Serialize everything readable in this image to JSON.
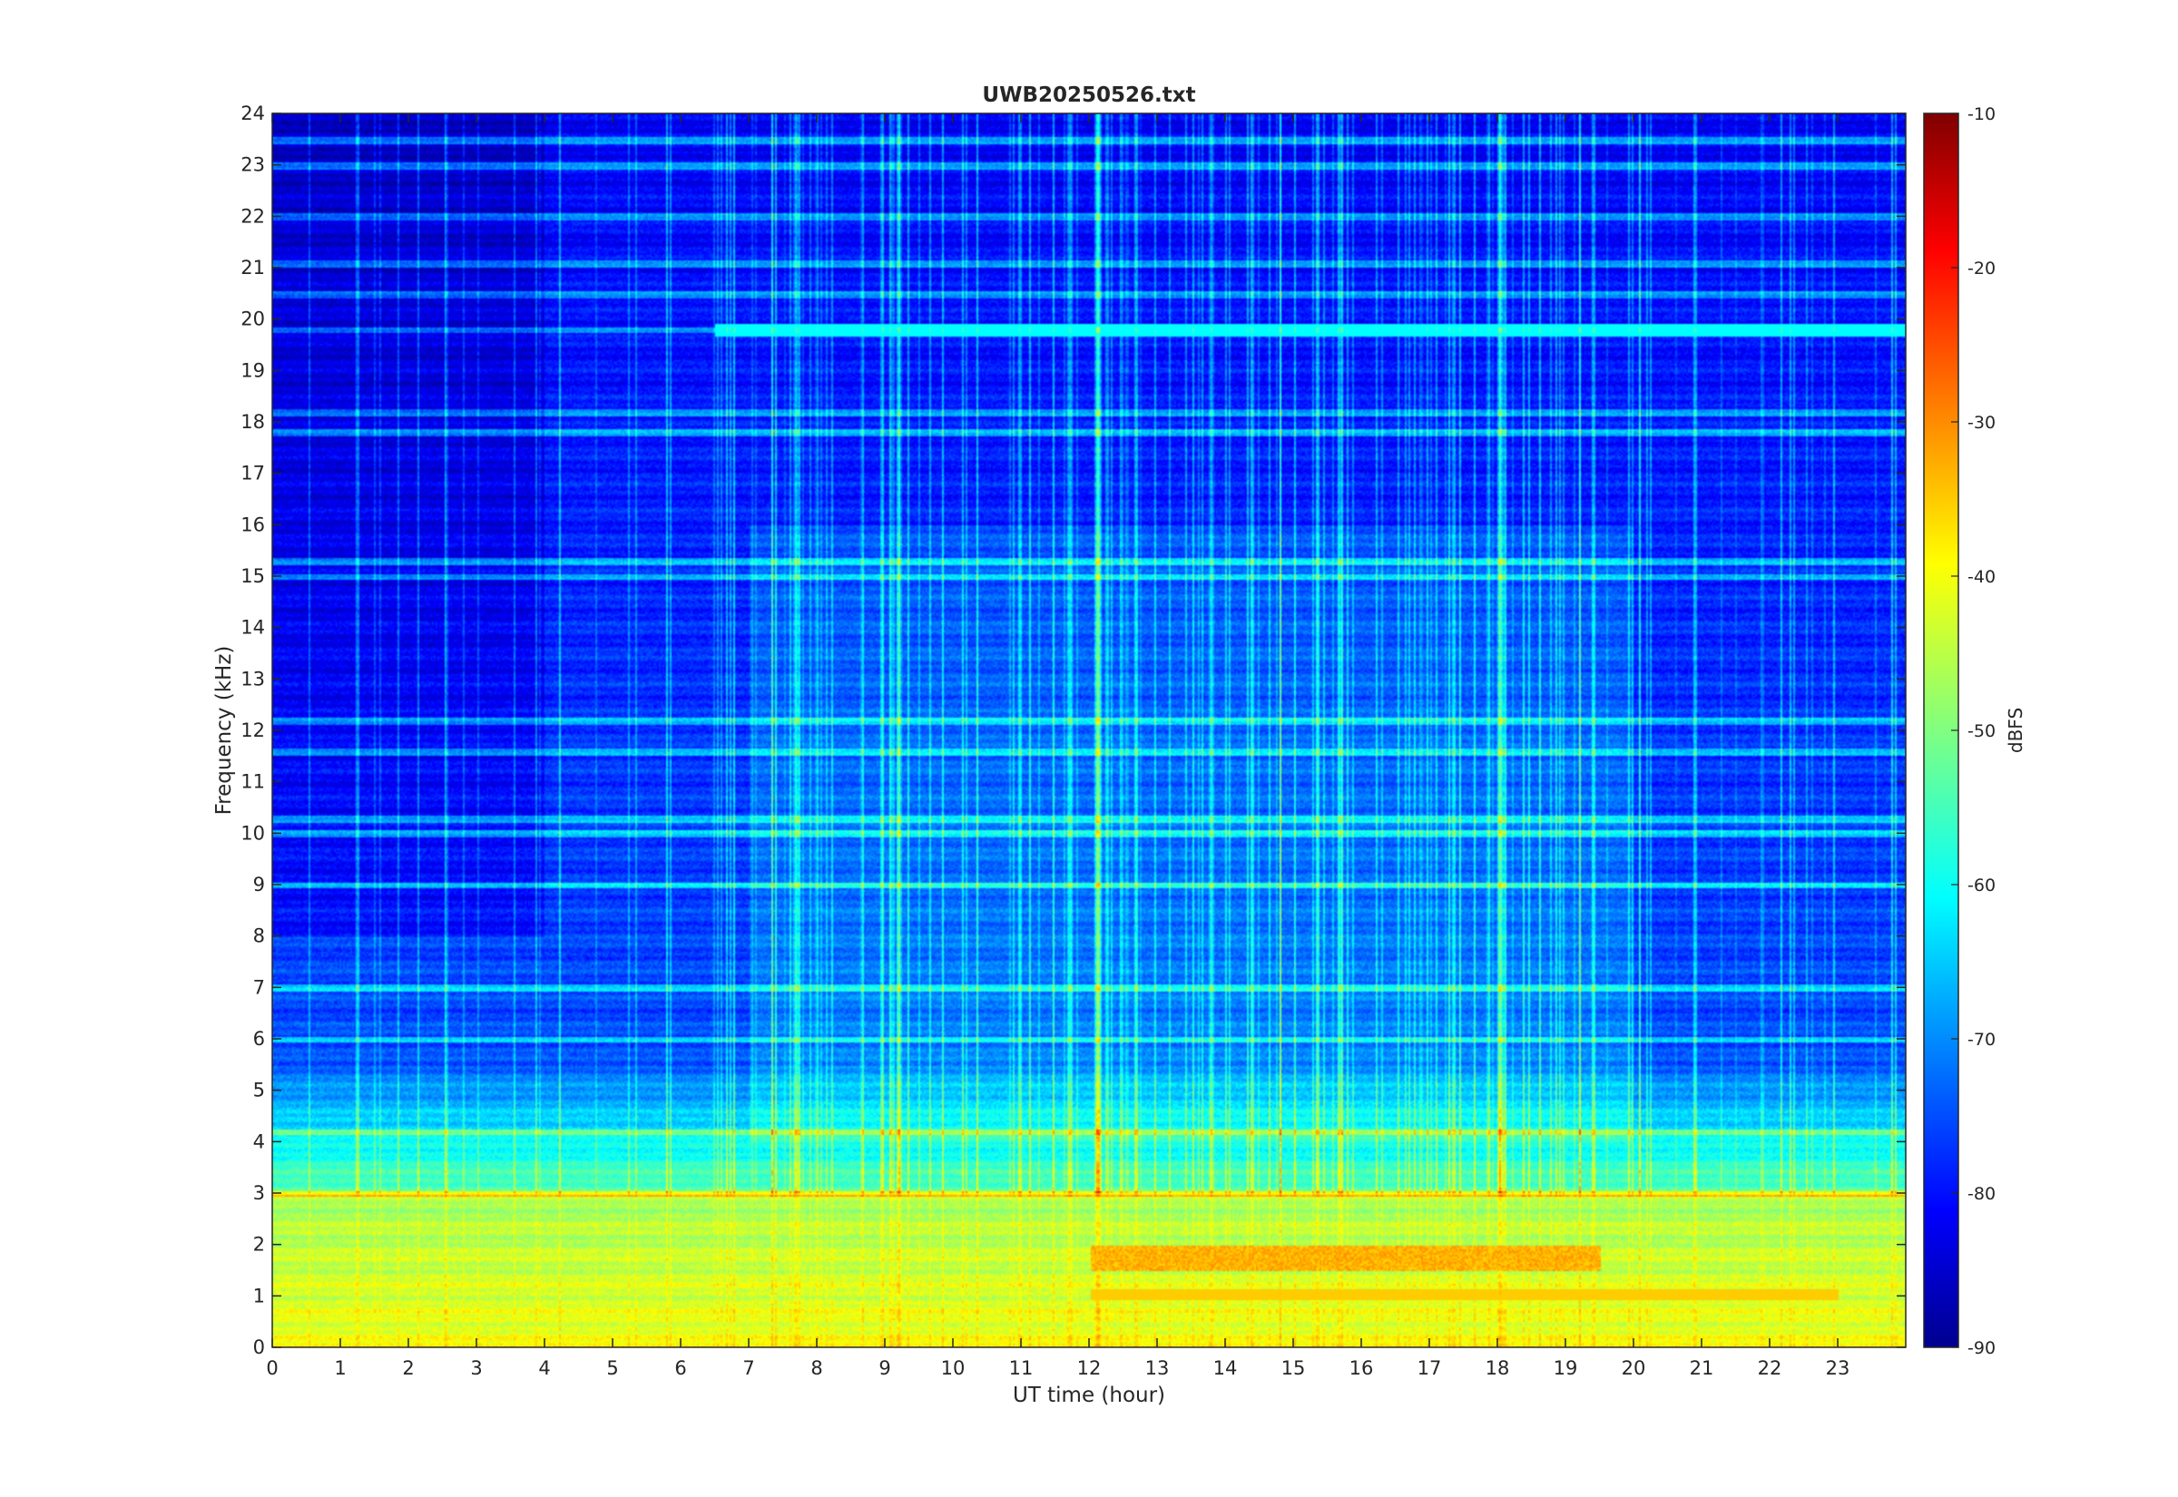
{
  "chart_data": {
    "type": "heatmap",
    "title": "UWB20250526.txt",
    "xlabel": "UT time (hour)",
    "ylabel": "Frequency (kHz)",
    "xlim": [
      0,
      24
    ],
    "ylim": [
      0,
      24
    ],
    "x_ticks": [
      0,
      1,
      2,
      3,
      4,
      5,
      6,
      7,
      8,
      9,
      10,
      11,
      12,
      13,
      14,
      15,
      16,
      17,
      18,
      19,
      20,
      21,
      22,
      23
    ],
    "y_ticks": [
      0,
      1,
      2,
      3,
      4,
      5,
      6,
      7,
      8,
      9,
      10,
      11,
      12,
      13,
      14,
      15,
      16,
      17,
      18,
      19,
      20,
      21,
      22,
      23,
      24
    ],
    "colormap": "jet",
    "colorbar": {
      "label": "dBFS",
      "range": [
        -90,
        -10
      ],
      "ticks": [
        -90,
        -80,
        -70,
        -60,
        -50,
        -40,
        -30,
        -20,
        -10
      ]
    },
    "features": {
      "low_band_dbfs": -42,
      "strong_band": {
        "x": [
          12,
          19.5
        ],
        "y": [
          1.5,
          2.0
        ],
        "dbfs": -32
      },
      "horizontal_lines_khz": [
        23.5,
        23.0,
        22.0,
        21.1,
        20.5,
        19.8,
        18.2,
        17.8,
        15.3,
        15.0,
        12.2,
        11.6,
        10.3,
        10.0,
        9.0,
        7.0,
        6.0,
        4.2,
        3.0
      ],
      "noise_floor_dbfs": -78
    }
  }
}
